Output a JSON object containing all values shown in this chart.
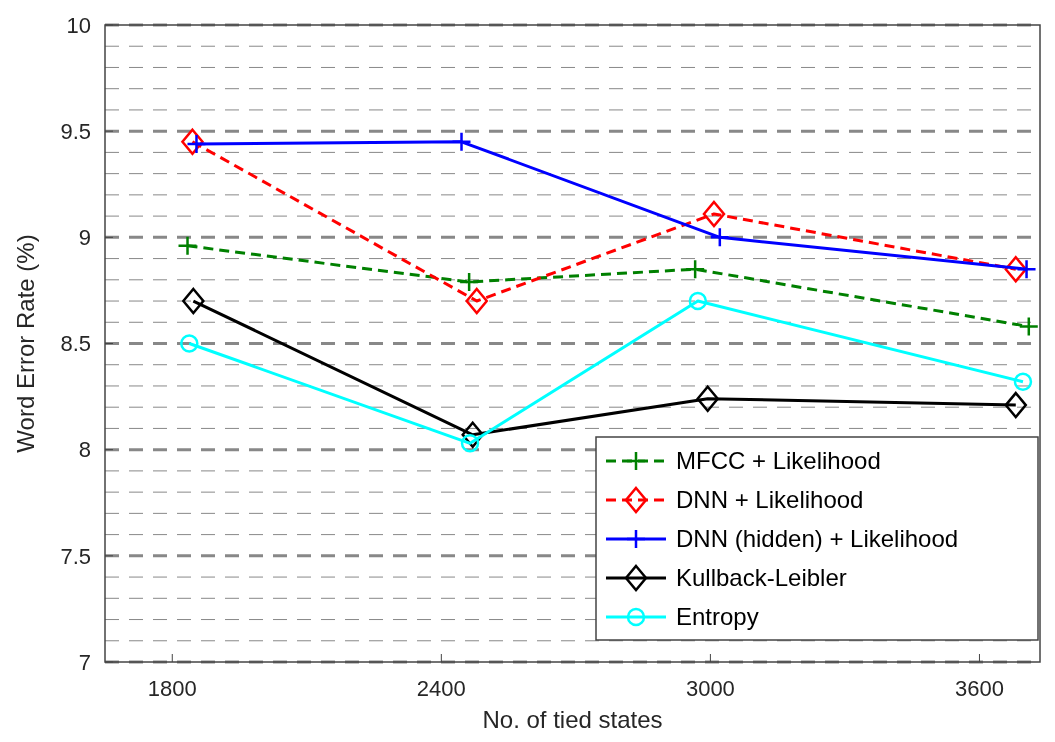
{
  "chart_data": {
    "type": "line",
    "xlabel": "No. of tied states",
    "ylabel": "Word Error Rate (%)",
    "xlim": [
      1650,
      3735
    ],
    "xticks": [
      1800,
      2400,
      3000,
      3600
    ],
    "ylim": [
      7,
      10
    ],
    "yticks": [
      7,
      7.5,
      8,
      8.5,
      9,
      9.5,
      10
    ],
    "grid": "y",
    "legend": "bottom right",
    "series": [
      {
        "name": "MFCC + Likelihood",
        "color": "#008000",
        "marker": "cross",
        "line_style": "dashed",
        "x": [
          1834,
          2462,
          2966,
          3710
        ],
        "values": [
          8.96,
          8.79,
          8.85,
          8.58
        ]
      },
      {
        "name": "DNN + Likelihood",
        "color": "#ff0000",
        "marker": "diamond",
        "line_style": "dashed",
        "x": [
          1845,
          2479,
          3008,
          3681
        ],
        "values": [
          9.45,
          8.7,
          9.11,
          8.85
        ]
      },
      {
        "name": "DNN (hidden) + Likelihood",
        "color": "#0000ff",
        "marker": "cross",
        "line_style": "solid",
        "x": [
          1854,
          2445,
          3021,
          3705
        ],
        "values": [
          9.44,
          9.45,
          9.0,
          8.85
        ]
      },
      {
        "name": "Kullback-Leibler",
        "color": "#000000",
        "marker": "diamond",
        "line_style": "solid",
        "x": [
          1847,
          2470,
          2994,
          3681
        ],
        "values": [
          8.7,
          8.07,
          8.24,
          8.21
        ]
      },
      {
        "name": "Entropy",
        "color": "#00ffff",
        "marker": "circle",
        "line_style": "solid",
        "x": [
          1838,
          2464,
          2972,
          3697
        ],
        "values": [
          8.5,
          8.03,
          8.7,
          8.32
        ]
      }
    ]
  }
}
